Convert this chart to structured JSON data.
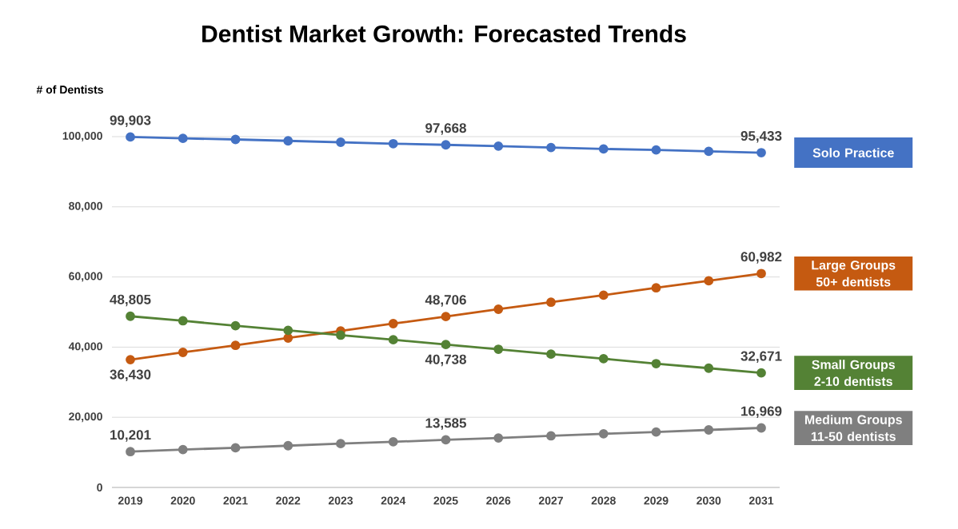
{
  "chart_data": {
    "type": "line",
    "title": "Dentist Market Growth: Forecasted Trends",
    "ylabel": "# of Dentists",
    "categories": [
      "2019",
      "2020",
      "2021",
      "2022",
      "2023",
      "2024",
      "2025",
      "2026",
      "2027",
      "2028",
      "2029",
      "2030",
      "2031"
    ],
    "ylim": [
      0,
      100000
    ],
    "yticks": [
      0,
      {
        "value": 20000,
        "label": "20,000"
      },
      {
        "value": 40000,
        "label": "40,000"
      },
      {
        "value": 60000,
        "label": "60,000"
      },
      {
        "value": 80000,
        "label": "80,000"
      },
      {
        "value": 100000,
        "label": "100,000"
      }
    ],
    "grid": "y",
    "legend": "right",
    "marker": "circle",
    "series": [
      {
        "name": "Solo Practice",
        "color": "#4472c4",
        "values": [
          99903,
          99500,
          99200,
          98800,
          98400,
          98000,
          97668,
          97300,
          96900,
          96500,
          96200,
          95800,
          95433
        ],
        "value_labels": [
          "99,903",
          null,
          null,
          null,
          null,
          null,
          "97,668",
          null,
          null,
          null,
          null,
          null,
          "95,433"
        ]
      },
      {
        "name": "Large Groups 50+ dentists",
        "color": "#c55a11",
        "values": [
          36430,
          38500,
          40500,
          42600,
          44600,
          46700,
          48706,
          50800,
          52800,
          54800,
          56900,
          58900,
          60982
        ],
        "value_labels": [
          "36,430",
          null,
          null,
          null,
          null,
          null,
          "48,706",
          null,
          null,
          null,
          null,
          null,
          "60,982"
        ]
      },
      {
        "name": "Small Groups 2-10 dentists",
        "color": "#548235",
        "values": [
          48805,
          47500,
          46100,
          44800,
          43400,
          42100,
          40738,
          39400,
          38000,
          36700,
          35300,
          34000,
          32671
        ],
        "value_labels": [
          "48,805",
          null,
          null,
          null,
          null,
          null,
          "40,738",
          null,
          null,
          null,
          null,
          null,
          "32,671"
        ]
      },
      {
        "name": "Medium Groups 11-50 dentists",
        "color": "#7f7f7f",
        "values": [
          10201,
          10800,
          11300,
          11900,
          12500,
          13000,
          13585,
          14100,
          14700,
          15300,
          15800,
          16400,
          16969
        ],
        "value_labels": [
          "10,201",
          null,
          null,
          null,
          null,
          null,
          "13,585",
          null,
          null,
          null,
          null,
          null,
          "16,969"
        ]
      }
    ]
  }
}
